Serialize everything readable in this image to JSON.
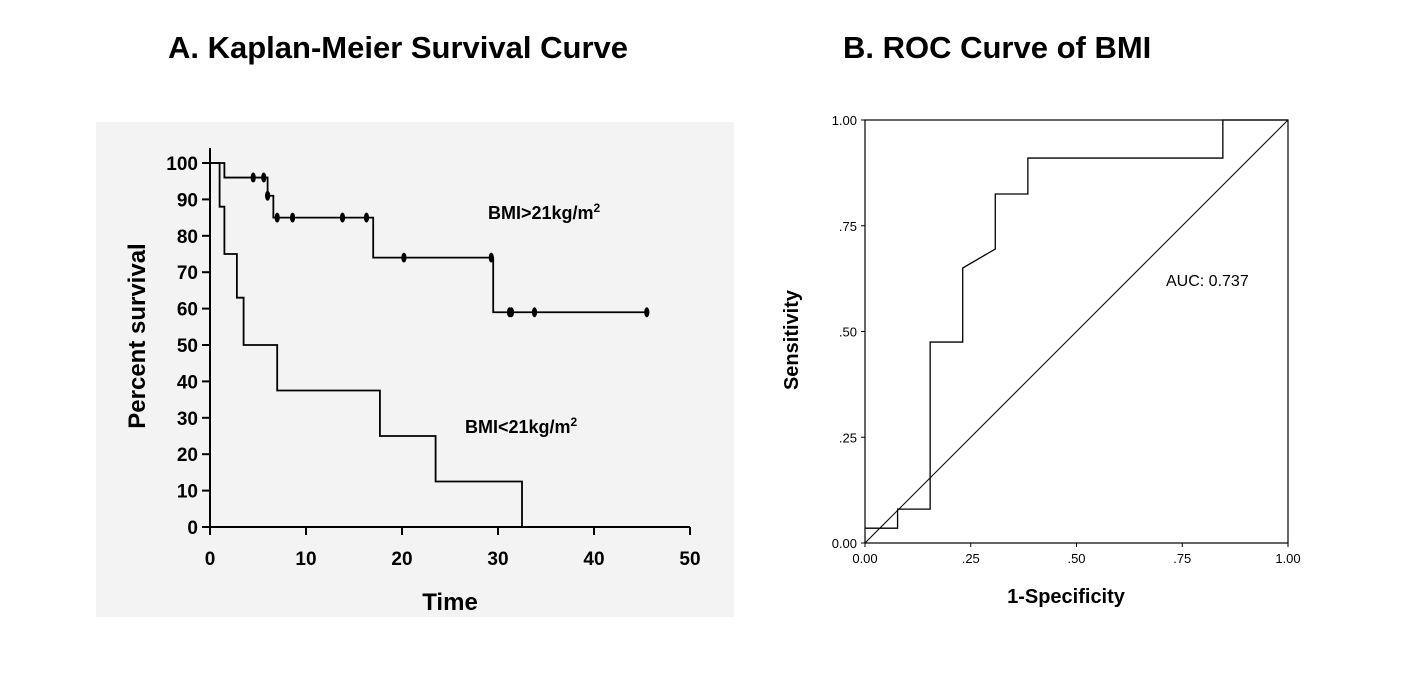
{
  "chart_data": [
    {
      "type": "line",
      "title": "A. Kaplan-Meier Survival Curve",
      "xlabel": "Time",
      "ylabel": "Percent survival",
      "xlim": [
        0,
        50
      ],
      "ylim": [
        0,
        100
      ],
      "xticks": [
        "0",
        "10",
        "20",
        "30",
        "40",
        "50"
      ],
      "yticks": [
        "0",
        "10",
        "20",
        "30",
        "40",
        "50",
        "60",
        "70",
        "80",
        "90",
        "100"
      ],
      "grid": false,
      "series": [
        {
          "name": "BMI>21kg/m2",
          "label_main": "BMI>21kg/m",
          "label_sup": "2",
          "step_x": [
            0,
            1.5,
            6.0,
            6.6,
            17.0,
            29.5,
            45.5
          ],
          "step_y": [
            100,
            96,
            91,
            85,
            74,
            59,
            59
          ],
          "censored_x": [
            4.5,
            5.6,
            6.0,
            7.0,
            8.6,
            13.8,
            16.3,
            20.2,
            29.3,
            31.2,
            31.4,
            33.8,
            45.5
          ],
          "censored_y": [
            96,
            96,
            91,
            85,
            85,
            85,
            85,
            74,
            74,
            59,
            59,
            59,
            59
          ]
        },
        {
          "name": "BMI<21kg/m2",
          "label_main": "BMI<21kg/m",
          "label_sup": "2",
          "step_x": [
            0,
            1.0,
            1.5,
            2.8,
            3.5,
            7.0,
            17.7,
            23.5,
            32.5
          ],
          "step_y": [
            100,
            88,
            75,
            63,
            50,
            37.5,
            25,
            12.5,
            0
          ],
          "censored_x": [],
          "censored_y": []
        }
      ]
    },
    {
      "type": "line",
      "title": "B. ROC Curve of BMI",
      "xlabel": "1-Specificity",
      "ylabel": "Sensitivity",
      "xlim": [
        0,
        1
      ],
      "ylim": [
        0,
        1
      ],
      "xticks": [
        "0.00",
        ".25",
        ".50",
        ".75",
        "1.00"
      ],
      "yticks": [
        "0.00",
        ".25",
        ".50",
        ".75",
        "1.00"
      ],
      "grid": false,
      "annotation": "AUC: 0.737",
      "series": [
        {
          "points": [
            [
              0,
              0.035
            ],
            [
              0.077,
              0.035
            ],
            [
              0.077,
              0.08
            ],
            [
              0.154,
              0.08
            ],
            [
              0.154,
              0.475
            ],
            [
              0.231,
              0.475
            ],
            [
              0.231,
              0.65
            ],
            [
              0.308,
              0.695
            ],
            [
              0.308,
              0.825
            ],
            [
              0.385,
              0.825
            ],
            [
              0.385,
              0.91
            ],
            [
              0.846,
              0.91
            ],
            [
              0.846,
              1.0
            ],
            [
              1.0,
              1.0
            ]
          ]
        },
        {
          "points": [
            [
              0,
              0
            ],
            [
              1,
              1
            ]
          ]
        }
      ]
    }
  ]
}
